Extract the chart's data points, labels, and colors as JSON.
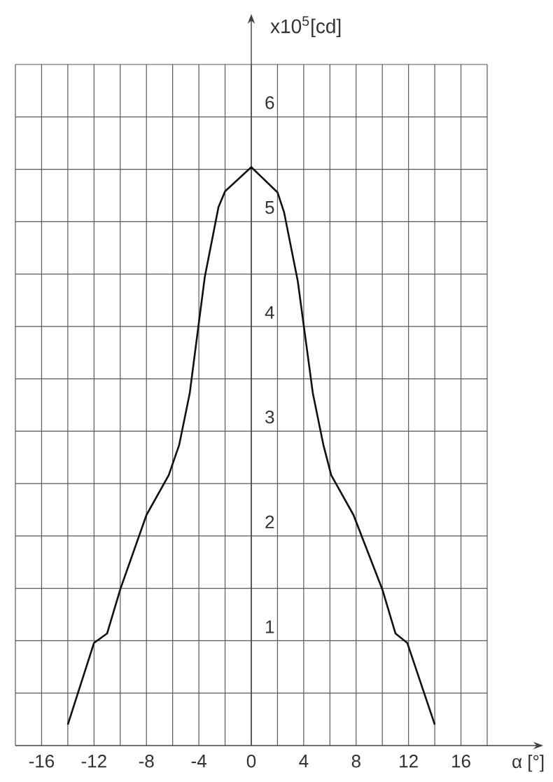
{
  "chart_data": {
    "type": "line",
    "xlabel": "α [°]",
    "ylabel": "x10$^{5}$[cd]",
    "x": [
      -14,
      -12,
      -11,
      -10,
      -8,
      -6.3,
      -5.5,
      -4.7,
      -3.55,
      -2.5,
      -2,
      0,
      2,
      2.5,
      3.55,
      4.7,
      5.5,
      6.1,
      7.8,
      10,
      11,
      11.9,
      14
    ],
    "series": [
      {
        "color": "#111111",
        "values": [
          0.2,
          0.98,
          1.07,
          1.49,
          2.2,
          2.58,
          2.87,
          3.36,
          4.47,
          5.14,
          5.29,
          5.52,
          5.28,
          5.09,
          4.43,
          3.36,
          2.87,
          2.58,
          2.2,
          1.49,
          1.07,
          0.98,
          0.2
        ]
      }
    ],
    "xlim": [
      -18,
      18
    ],
    "ylim": [
      0,
      6.5
    ],
    "xticks": [
      {
        "value": -18,
        "label": null
      },
      -16,
      {
        "value": -14,
        "label": null
      },
      -12,
      {
        "value": -10,
        "label": null
      },
      -8,
      {
        "value": -6,
        "label": null
      },
      -4,
      {
        "value": -2,
        "label": null
      },
      0,
      {
        "value": 2,
        "label": null
      },
      4,
      {
        "value": 6,
        "label": null
      },
      8,
      {
        "value": 10,
        "label": null
      },
      12,
      {
        "value": 14,
        "label": null
      },
      16,
      {
        "value": 18,
        "label": null
      }
    ],
    "yticks": [
      {
        "value": 0,
        "label": null
      },
      {
        "value": 0.5,
        "label": null
      },
      1,
      {
        "value": 1.5,
        "label": null
      },
      2,
      {
        "value": 2.5,
        "label": null
      },
      3,
      {
        "value": 3.5,
        "label": null
      },
      4,
      {
        "value": 4.5,
        "label": null
      },
      5,
      {
        "value": 5.5,
        "label": null
      },
      6,
      {
        "value": 6.5,
        "label": null
      }
    ],
    "grid": true,
    "marker": "none",
    "line_style": "solid"
  }
}
